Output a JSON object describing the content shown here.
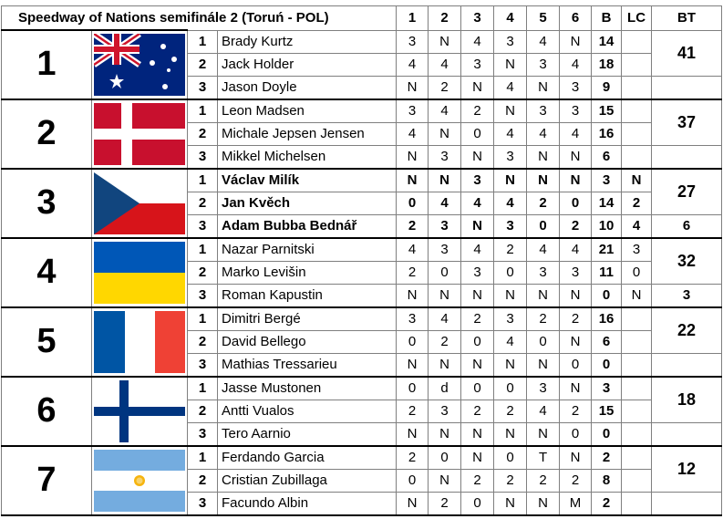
{
  "title": "Speedway of Nations semifinále 2 (Toruń - POL)",
  "headers": [
    "1",
    "2",
    "3",
    "4",
    "5",
    "6",
    "B",
    "LC",
    "BT"
  ],
  "teams": [
    {
      "place": "1",
      "flag": "australia-flag",
      "total": "41",
      "riders": [
        {
          "pos": "1",
          "name": "Brady Kurtz",
          "heats": [
            "3",
            "N",
            "4",
            "3",
            "4",
            "N"
          ],
          "b": "14",
          "lc": "",
          "bt": ""
        },
        {
          "pos": "2",
          "name": "Jack Holder",
          "heats": [
            "4",
            "4",
            "3",
            "N",
            "3",
            "4"
          ],
          "b": "18",
          "lc": "",
          "bt": ""
        },
        {
          "pos": "3",
          "name": "Jason Doyle",
          "heats": [
            "N",
            "2",
            "N",
            "4",
            "N",
            "3"
          ],
          "b": "9",
          "lc": "",
          "bt": ""
        }
      ]
    },
    {
      "place": "2",
      "flag": "denmark-flag",
      "total": "37",
      "riders": [
        {
          "pos": "1",
          "name": "Leon Madsen",
          "heats": [
            "3",
            "4",
            "2",
            "N",
            "3",
            "3"
          ],
          "b": "15",
          "lc": "",
          "bt": ""
        },
        {
          "pos": "2",
          "name": "Michale Jepsen Jensen",
          "heats": [
            "4",
            "N",
            "0",
            "4",
            "4",
            "4"
          ],
          "b": "16",
          "lc": "",
          "bt": ""
        },
        {
          "pos": "3",
          "name": "Mikkel Michelsen",
          "heats": [
            "N",
            "3",
            "N",
            "3",
            "N",
            "N"
          ],
          "b": "6",
          "lc": "",
          "bt": ""
        }
      ]
    },
    {
      "place": "3",
      "flag": "czech-flag",
      "total": "27",
      "bold": true,
      "riders": [
        {
          "pos": "1",
          "name": "Václav Milík",
          "heats": [
            "N",
            "N",
            "3",
            "N",
            "N",
            "N"
          ],
          "b": "3",
          "lc": "N",
          "bt": ""
        },
        {
          "pos": "2",
          "name": "Jan Kvěch",
          "heats": [
            "0",
            "4",
            "4",
            "4",
            "2",
            "0"
          ],
          "b": "14",
          "lc": "2",
          "bt": ""
        },
        {
          "pos": "3",
          "name": "Adam Bubba Bednář",
          "heats": [
            "2",
            "3",
            "N",
            "3",
            "0",
            "2"
          ],
          "b": "10",
          "lc": "4",
          "bt": "6"
        }
      ]
    },
    {
      "place": "4",
      "flag": "ukraine-flag",
      "total": "32",
      "riders": [
        {
          "pos": "1",
          "name": "Nazar Parnitski",
          "heats": [
            "4",
            "3",
            "4",
            "2",
            "4",
            "4"
          ],
          "b": "21",
          "lc": "3",
          "bt": ""
        },
        {
          "pos": "2",
          "name": "Marko Levišin",
          "heats": [
            "2",
            "0",
            "3",
            "0",
            "3",
            "3"
          ],
          "b": "11",
          "lc": "0",
          "bt": ""
        },
        {
          "pos": "3",
          "name": "Roman Kapustin",
          "heats": [
            "N",
            "N",
            "N",
            "N",
            "N",
            "N"
          ],
          "b": "0",
          "lc": "N",
          "bt": "3"
        }
      ]
    },
    {
      "place": "5",
      "flag": "france-flag",
      "total": "22",
      "riders": [
        {
          "pos": "1",
          "name": "Dimitri Bergé",
          "heats": [
            "3",
            "4",
            "2",
            "3",
            "2",
            "2"
          ],
          "b": "16",
          "lc": "",
          "bt": ""
        },
        {
          "pos": "2",
          "name": "David Bellego",
          "heats": [
            "0",
            "2",
            "0",
            "4",
            "0",
            "N"
          ],
          "b": "6",
          "lc": "",
          "bt": ""
        },
        {
          "pos": "3",
          "name": "Mathias Tressarieu",
          "heats": [
            "N",
            "N",
            "N",
            "N",
            "N",
            "0"
          ],
          "b": "0",
          "lc": "",
          "bt": ""
        }
      ]
    },
    {
      "place": "6",
      "flag": "finland-flag",
      "total": "18",
      "riders": [
        {
          "pos": "1",
          "name": "Jasse Mustonen",
          "heats": [
            "0",
            "d",
            "0",
            "0",
            "3",
            "N"
          ],
          "b": "3",
          "lc": "",
          "bt": ""
        },
        {
          "pos": "2",
          "name": "Antti Vualos",
          "heats": [
            "2",
            "3",
            "2",
            "2",
            "4",
            "2"
          ],
          "b": "15",
          "lc": "",
          "bt": ""
        },
        {
          "pos": "3",
          "name": "Tero Aarnio",
          "heats": [
            "N",
            "N",
            "N",
            "N",
            "N",
            "0"
          ],
          "b": "0",
          "lc": "",
          "bt": ""
        }
      ]
    },
    {
      "place": "7",
      "flag": "argentina-flag",
      "total": "12",
      "riders": [
        {
          "pos": "1",
          "name": "Ferdando Garcia",
          "heats": [
            "2",
            "0",
            "N",
            "0",
            "T",
            "N"
          ],
          "b": "2",
          "lc": "",
          "bt": ""
        },
        {
          "pos": "2",
          "name": "Cristian Zubillaga",
          "heats": [
            "0",
            "N",
            "2",
            "2",
            "2",
            "2"
          ],
          "b": "8",
          "lc": "",
          "bt": ""
        },
        {
          "pos": "3",
          "name": "Facundo Albin",
          "heats": [
            "N",
            "2",
            "0",
            "N",
            "N",
            "M"
          ],
          "b": "2",
          "lc": "",
          "bt": ""
        }
      ]
    }
  ],
  "colors": {
    "border": "#7f7f7f",
    "section_border": "#000000"
  }
}
